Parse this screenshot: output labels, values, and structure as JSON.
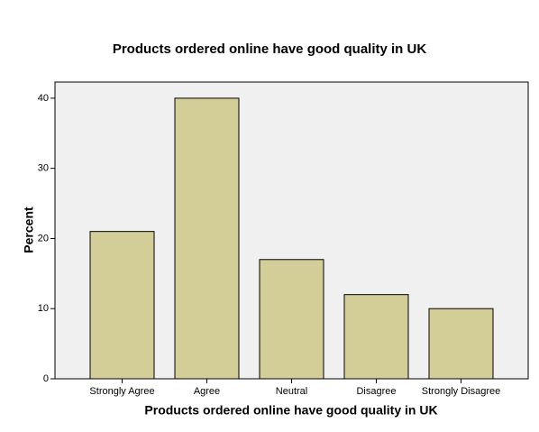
{
  "chart_data": {
    "type": "bar",
    "title": "Products ordered online have good quality in UK",
    "x_label": "Products ordered online have good quality in UK",
    "y_label": "Percent",
    "categories": [
      "Strongly Agree",
      "Agree",
      "Neutral",
      "Disagree",
      "Strongly Disagree"
    ],
    "values": [
      21,
      40,
      17,
      12,
      10
    ],
    "color": "#d3ce97",
    "ylim": [
      0,
      42.3
    ],
    "yticks": [
      0,
      10,
      20,
      30,
      40
    ],
    "grid": false
  }
}
